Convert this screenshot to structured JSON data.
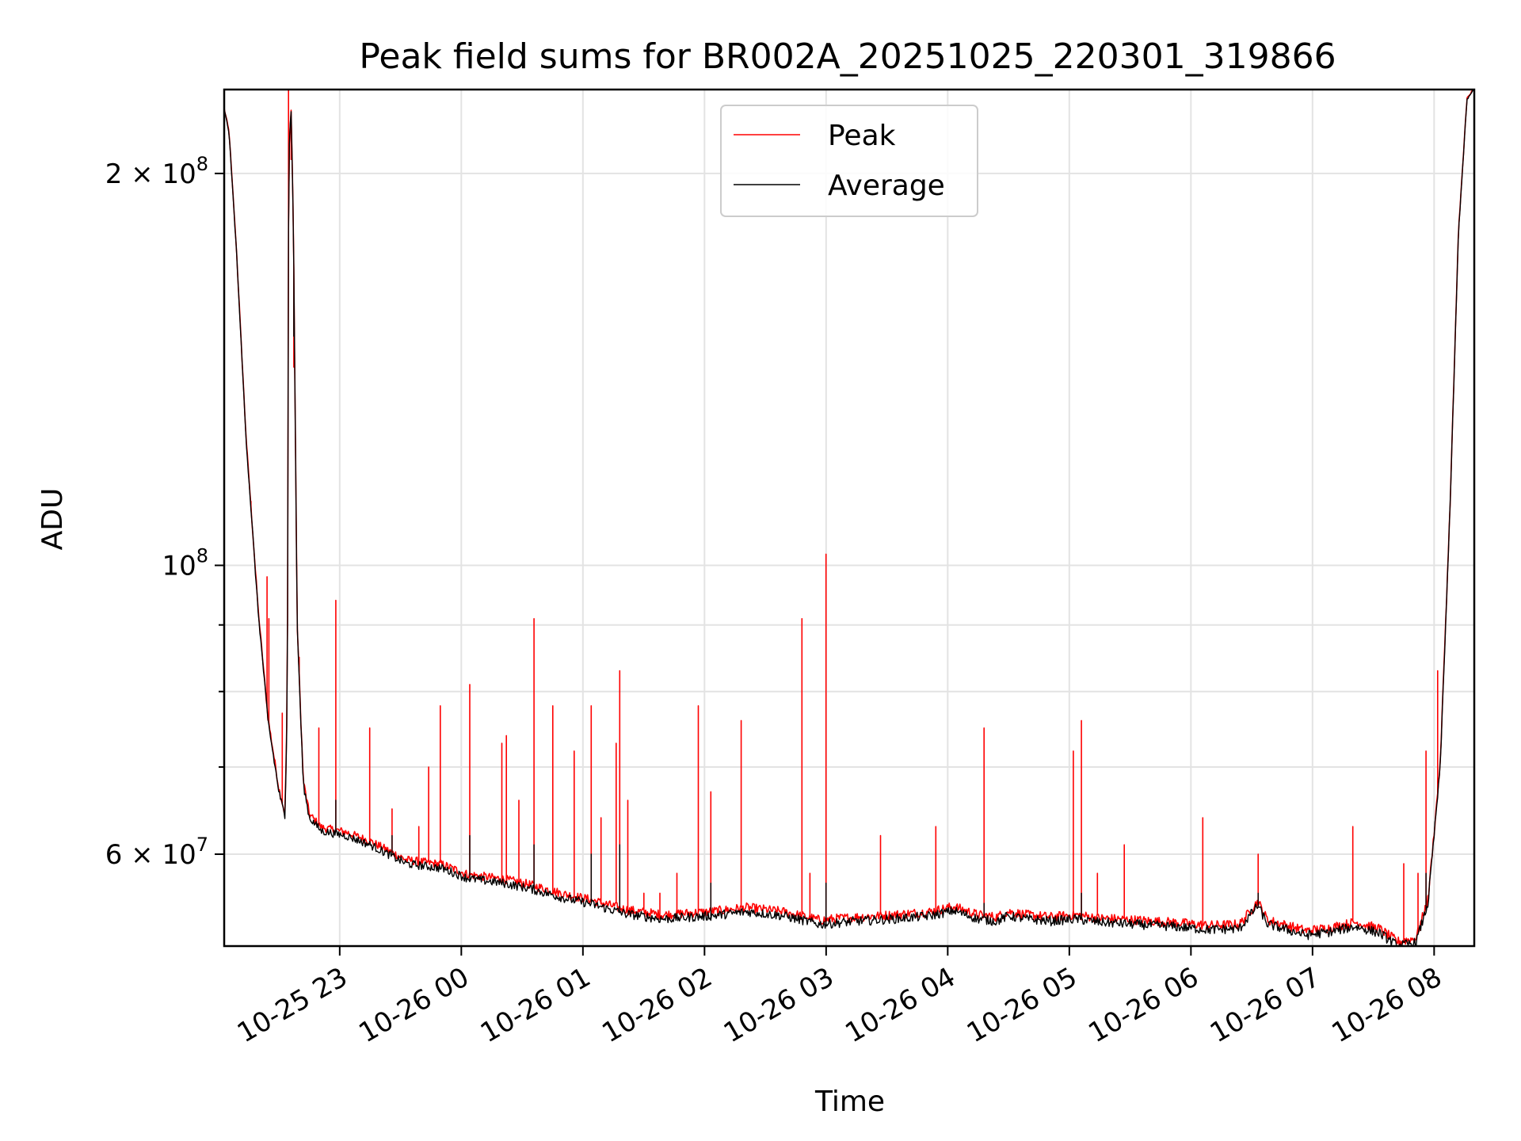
{
  "chart_data": {
    "type": "line",
    "title": "Peak field sums for BR002A_20251025_220301_319866",
    "xlabel": "Time",
    "ylabel": "ADU",
    "yscale": "log",
    "grid": true,
    "legend_position": "upper-center",
    "xlim_hours": [
      0.0,
      10.28
    ],
    "ylim": [
      51000000,
      232000000
    ],
    "x_ticks": [
      {
        "hour": 0.95,
        "label": "10-25 23"
      },
      {
        "hour": 1.95,
        "label": "10-26 00"
      },
      {
        "hour": 2.95,
        "label": "10-26 01"
      },
      {
        "hour": 3.95,
        "label": "10-26 02"
      },
      {
        "hour": 4.95,
        "label": "10-26 03"
      },
      {
        "hour": 5.95,
        "label": "10-26 04"
      },
      {
        "hour": 6.95,
        "label": "10-26 05"
      },
      {
        "hour": 7.95,
        "label": "10-26 06"
      },
      {
        "hour": 8.95,
        "label": "10-26 07"
      },
      {
        "hour": 9.95,
        "label": "10-26 08"
      }
    ],
    "y_ticks": [
      {
        "value": 200000000,
        "mantissa": "2",
        "times": " × ",
        "base": "10",
        "exp": "8"
      },
      {
        "value": 100000000,
        "mantissa": "",
        "times": "",
        "base": "10",
        "exp": "8"
      },
      {
        "value": 60000000,
        "mantissa": "6",
        "times": " × ",
        "base": "10",
        "exp": "7"
      }
    ],
    "y_minor_ticks": [
      70000000,
      80000000,
      90000000
    ],
    "series": [
      {
        "name": "Peak",
        "color": "#ff0000",
        "base_offset": 400000,
        "spikes": [
          [
            0.22,
            112000000
          ],
          [
            0.35,
            98000000
          ],
          [
            0.37,
            91000000
          ],
          [
            0.48,
            77000000
          ],
          [
            0.53,
            232000000
          ],
          [
            0.55,
            205000000
          ],
          [
            0.57,
            142000000
          ],
          [
            0.62,
            85000000
          ],
          [
            0.78,
            75000000
          ],
          [
            0.92,
            94000000
          ],
          [
            1.2,
            75000000
          ],
          [
            1.38,
            65000000
          ],
          [
            1.6,
            63000000
          ],
          [
            1.68,
            70000000
          ],
          [
            1.78,
            78000000
          ],
          [
            2.02,
            81000000
          ],
          [
            2.28,
            73000000
          ],
          [
            2.32,
            74000000
          ],
          [
            2.42,
            66000000
          ],
          [
            2.55,
            91000000
          ],
          [
            2.7,
            78000000
          ],
          [
            2.88,
            72000000
          ],
          [
            3.02,
            78000000
          ],
          [
            3.1,
            64000000
          ],
          [
            3.22,
            73000000
          ],
          [
            3.25,
            83000000
          ],
          [
            3.32,
            66000000
          ],
          [
            3.45,
            56000000
          ],
          [
            3.58,
            56000000
          ],
          [
            3.72,
            58000000
          ],
          [
            3.9,
            78000000
          ],
          [
            4.0,
            67000000
          ],
          [
            4.25,
            76000000
          ],
          [
            4.75,
            91000000
          ],
          [
            4.82,
            58000000
          ],
          [
            4.95,
            102000000
          ],
          [
            5.4,
            62000000
          ],
          [
            5.85,
            63000000
          ],
          [
            6.25,
            75000000
          ],
          [
            6.98,
            72000000
          ],
          [
            7.05,
            76000000
          ],
          [
            7.18,
            58000000
          ],
          [
            7.4,
            61000000
          ],
          [
            8.05,
            64000000
          ],
          [
            8.5,
            60000000
          ],
          [
            9.28,
            63000000
          ],
          [
            9.7,
            59000000
          ],
          [
            9.82,
            58000000
          ],
          [
            9.88,
            72000000
          ],
          [
            9.98,
            83000000
          ]
        ]
      },
      {
        "name": "Average",
        "color": "#000000",
        "baseline": [
          [
            0.0,
            224000000
          ],
          [
            0.04,
            215000000
          ],
          [
            0.1,
            175000000
          ],
          [
            0.18,
            125000000
          ],
          [
            0.28,
            92000000
          ],
          [
            0.36,
            76000000
          ],
          [
            0.45,
            67000000
          ],
          [
            0.5,
            64000000
          ],
          [
            0.52,
            80000000
          ],
          [
            0.53,
            205000000
          ],
          [
            0.55,
            225000000
          ],
          [
            0.57,
            180000000
          ],
          [
            0.6,
            90000000
          ],
          [
            0.65,
            68000000
          ],
          [
            0.7,
            64000000
          ],
          [
            0.8,
            62500000
          ],
          [
            1.0,
            62000000
          ],
          [
            1.2,
            61000000
          ],
          [
            1.5,
            59000000
          ],
          [
            1.8,
            58500000
          ],
          [
            2.0,
            57500000
          ],
          [
            2.3,
            57000000
          ],
          [
            2.5,
            56500000
          ],
          [
            2.8,
            55500000
          ],
          [
            3.0,
            55000000
          ],
          [
            3.3,
            54000000
          ],
          [
            3.6,
            53500000
          ],
          [
            4.0,
            53800000
          ],
          [
            4.3,
            54200000
          ],
          [
            4.6,
            53800000
          ],
          [
            4.9,
            53000000
          ],
          [
            5.2,
            53300000
          ],
          [
            5.5,
            53500000
          ],
          [
            5.8,
            53800000
          ],
          [
            6.0,
            54300000
          ],
          [
            6.2,
            53500000
          ],
          [
            6.35,
            53300000
          ],
          [
            6.45,
            53800000
          ],
          [
            6.6,
            53500000
          ],
          [
            6.8,
            53300000
          ],
          [
            7.0,
            53500000
          ],
          [
            7.2,
            53200000
          ],
          [
            7.5,
            53000000
          ],
          [
            7.8,
            52800000
          ],
          [
            8.1,
            52500000
          ],
          [
            8.35,
            52600000
          ],
          [
            8.5,
            54800000
          ],
          [
            8.58,
            53000000
          ],
          [
            8.9,
            52000000
          ],
          [
            9.1,
            52300000
          ],
          [
            9.3,
            52800000
          ],
          [
            9.5,
            52200000
          ],
          [
            9.65,
            51000000
          ],
          [
            9.8,
            51300000
          ],
          [
            9.9,
            55000000
          ],
          [
            10.0,
            70000000
          ],
          [
            10.08,
            110000000
          ],
          [
            10.15,
            180000000
          ],
          [
            10.22,
            228000000
          ],
          [
            10.28,
            232000000
          ]
        ],
        "spikes": [
          [
            0.55,
            220000000
          ],
          [
            0.57,
            150000000
          ],
          [
            0.92,
            66000000
          ],
          [
            1.38,
            62000000
          ],
          [
            2.02,
            62000000
          ],
          [
            2.55,
            61000000
          ],
          [
            3.02,
            60000000
          ],
          [
            3.25,
            61000000
          ],
          [
            4.0,
            57000000
          ],
          [
            4.95,
            57000000
          ],
          [
            6.25,
            55000000
          ],
          [
            7.05,
            56000000
          ],
          [
            8.5,
            56000000
          ],
          [
            9.88,
            58000000
          ]
        ]
      }
    ]
  }
}
